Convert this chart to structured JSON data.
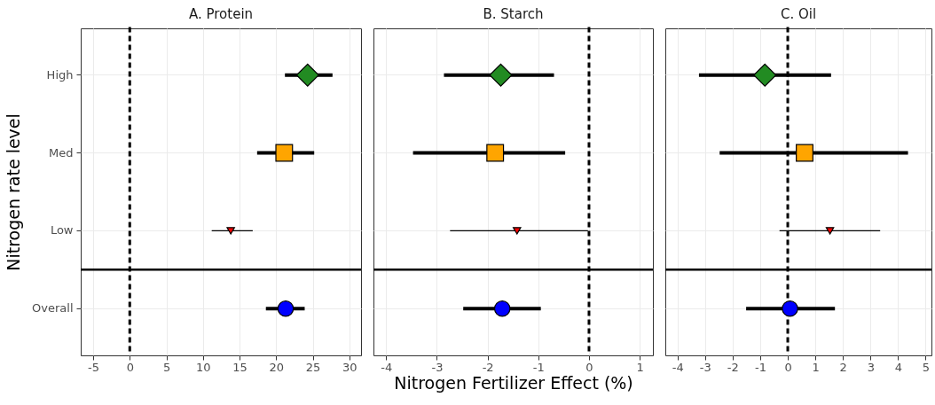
{
  "chart_data": [
    {
      "type": "scatter",
      "orientation": "horizontal",
      "title": "A. Protein",
      "ylabel": "Nitrogen rate level",
      "categories": [
        "High",
        "Med",
        "Low",
        "Overall"
      ],
      "xlim": [
        -6.7,
        31.6
      ],
      "xticks": [
        -5,
        0,
        5,
        10,
        15,
        20,
        25,
        30
      ],
      "grid": true,
      "series": [
        {
          "color": "#228b22",
          "marker": "diamond",
          "values": [
            24.3,
            null,
            null,
            null
          ],
          "errors": [
            [
              21.2,
              27.7
            ],
            null,
            null,
            null
          ]
        },
        {
          "color": "#ffa500",
          "marker": "square",
          "values": [
            null,
            21.1,
            null,
            null
          ],
          "errors": [
            null,
            [
              17.4,
              25.2
            ],
            null,
            null
          ]
        },
        {
          "color": "#ff0000",
          "marker": "triangle",
          "values": [
            null,
            null,
            13.8,
            null
          ],
          "errors": [
            null,
            null,
            [
              11.2,
              16.8
            ],
            null
          ]
        },
        {
          "color": "#0000ff",
          "marker": "circle",
          "values": [
            null,
            null,
            null,
            21.3
          ],
          "errors": [
            null,
            null,
            null,
            [
              18.6,
              23.9
            ]
          ]
        }
      ],
      "ref_lines": [
        {
          "axis": "x",
          "value": 0,
          "line_style": "dotted"
        },
        {
          "axis": "y",
          "value": "Overall",
          "line_style": "solid"
        }
      ]
    },
    {
      "type": "scatter",
      "orientation": "horizontal",
      "title": "B. Starch",
      "xlabel": "Nitrogen Fertilizer Effect (%)",
      "categories": [
        "High",
        "Med",
        "Low",
        "Overall"
      ],
      "xlim": [
        -4.25,
        1.26
      ],
      "xticks": [
        -4,
        -3,
        -2,
        -1,
        0,
        1
      ],
      "grid": true,
      "tick_labels": "x",
      "series": [
        {
          "color": "#228b22",
          "marker": "diamond",
          "values": [
            -1.74,
            null,
            null,
            null
          ],
          "errors": [
            [
              -2.86,
              -0.69
            ],
            null,
            null,
            null
          ]
        },
        {
          "color": "#ffa500",
          "marker": "square",
          "values": [
            null,
            -1.85,
            null,
            null
          ],
          "errors": [
            null,
            [
              -3.47,
              -0.47
            ],
            null,
            null
          ]
        },
        {
          "color": "#ff0000",
          "marker": "triangle",
          "values": [
            null,
            null,
            -1.42,
            null
          ],
          "errors": [
            null,
            null,
            [
              -2.74,
              -0.02
            ],
            null
          ]
        },
        {
          "color": "#0000ff",
          "marker": "circle",
          "values": [
            null,
            null,
            null,
            -1.71
          ],
          "errors": [
            null,
            null,
            null,
            [
              -2.48,
              -0.95
            ]
          ]
        }
      ],
      "ref_lines": [
        {
          "axis": "x",
          "value": 0,
          "line_style": "dotted"
        },
        {
          "axis": "y",
          "value": "Overall",
          "line_style": "solid"
        }
      ]
    },
    {
      "type": "scatter",
      "orientation": "horizontal",
      "title": "C. Oil",
      "categories": [
        "High",
        "Med",
        "Low",
        "Overall"
      ],
      "xlim": [
        -4.44,
        5.21
      ],
      "xticks": [
        -4,
        -3,
        -2,
        -1,
        0,
        1,
        2,
        3,
        4,
        5
      ],
      "grid": true,
      "tick_labels": "x",
      "series": [
        {
          "color": "#228b22",
          "marker": "diamond",
          "values": [
            -0.83,
            null,
            null,
            null
          ],
          "errors": [
            [
              -3.22,
              1.57
            ],
            null,
            null,
            null
          ]
        },
        {
          "color": "#ffa500",
          "marker": "square",
          "values": [
            null,
            0.61,
            null,
            null
          ],
          "errors": [
            null,
            [
              -2.47,
              4.36
            ],
            null,
            null
          ]
        },
        {
          "color": "#ff0000",
          "marker": "triangle",
          "values": [
            null,
            null,
            1.53,
            null
          ],
          "errors": [
            null,
            null,
            [
              -0.3,
              3.35
            ],
            null
          ]
        },
        {
          "color": "#0000ff",
          "marker": "circle",
          "values": [
            null,
            null,
            null,
            0.08
          ],
          "errors": [
            null,
            null,
            null,
            [
              -1.51,
              1.71
            ]
          ]
        }
      ],
      "ref_lines": [
        {
          "axis": "x",
          "value": 0,
          "line_style": "dotted"
        },
        {
          "axis": "y",
          "value": "Overall",
          "line_style": "solid"
        }
      ]
    }
  ]
}
